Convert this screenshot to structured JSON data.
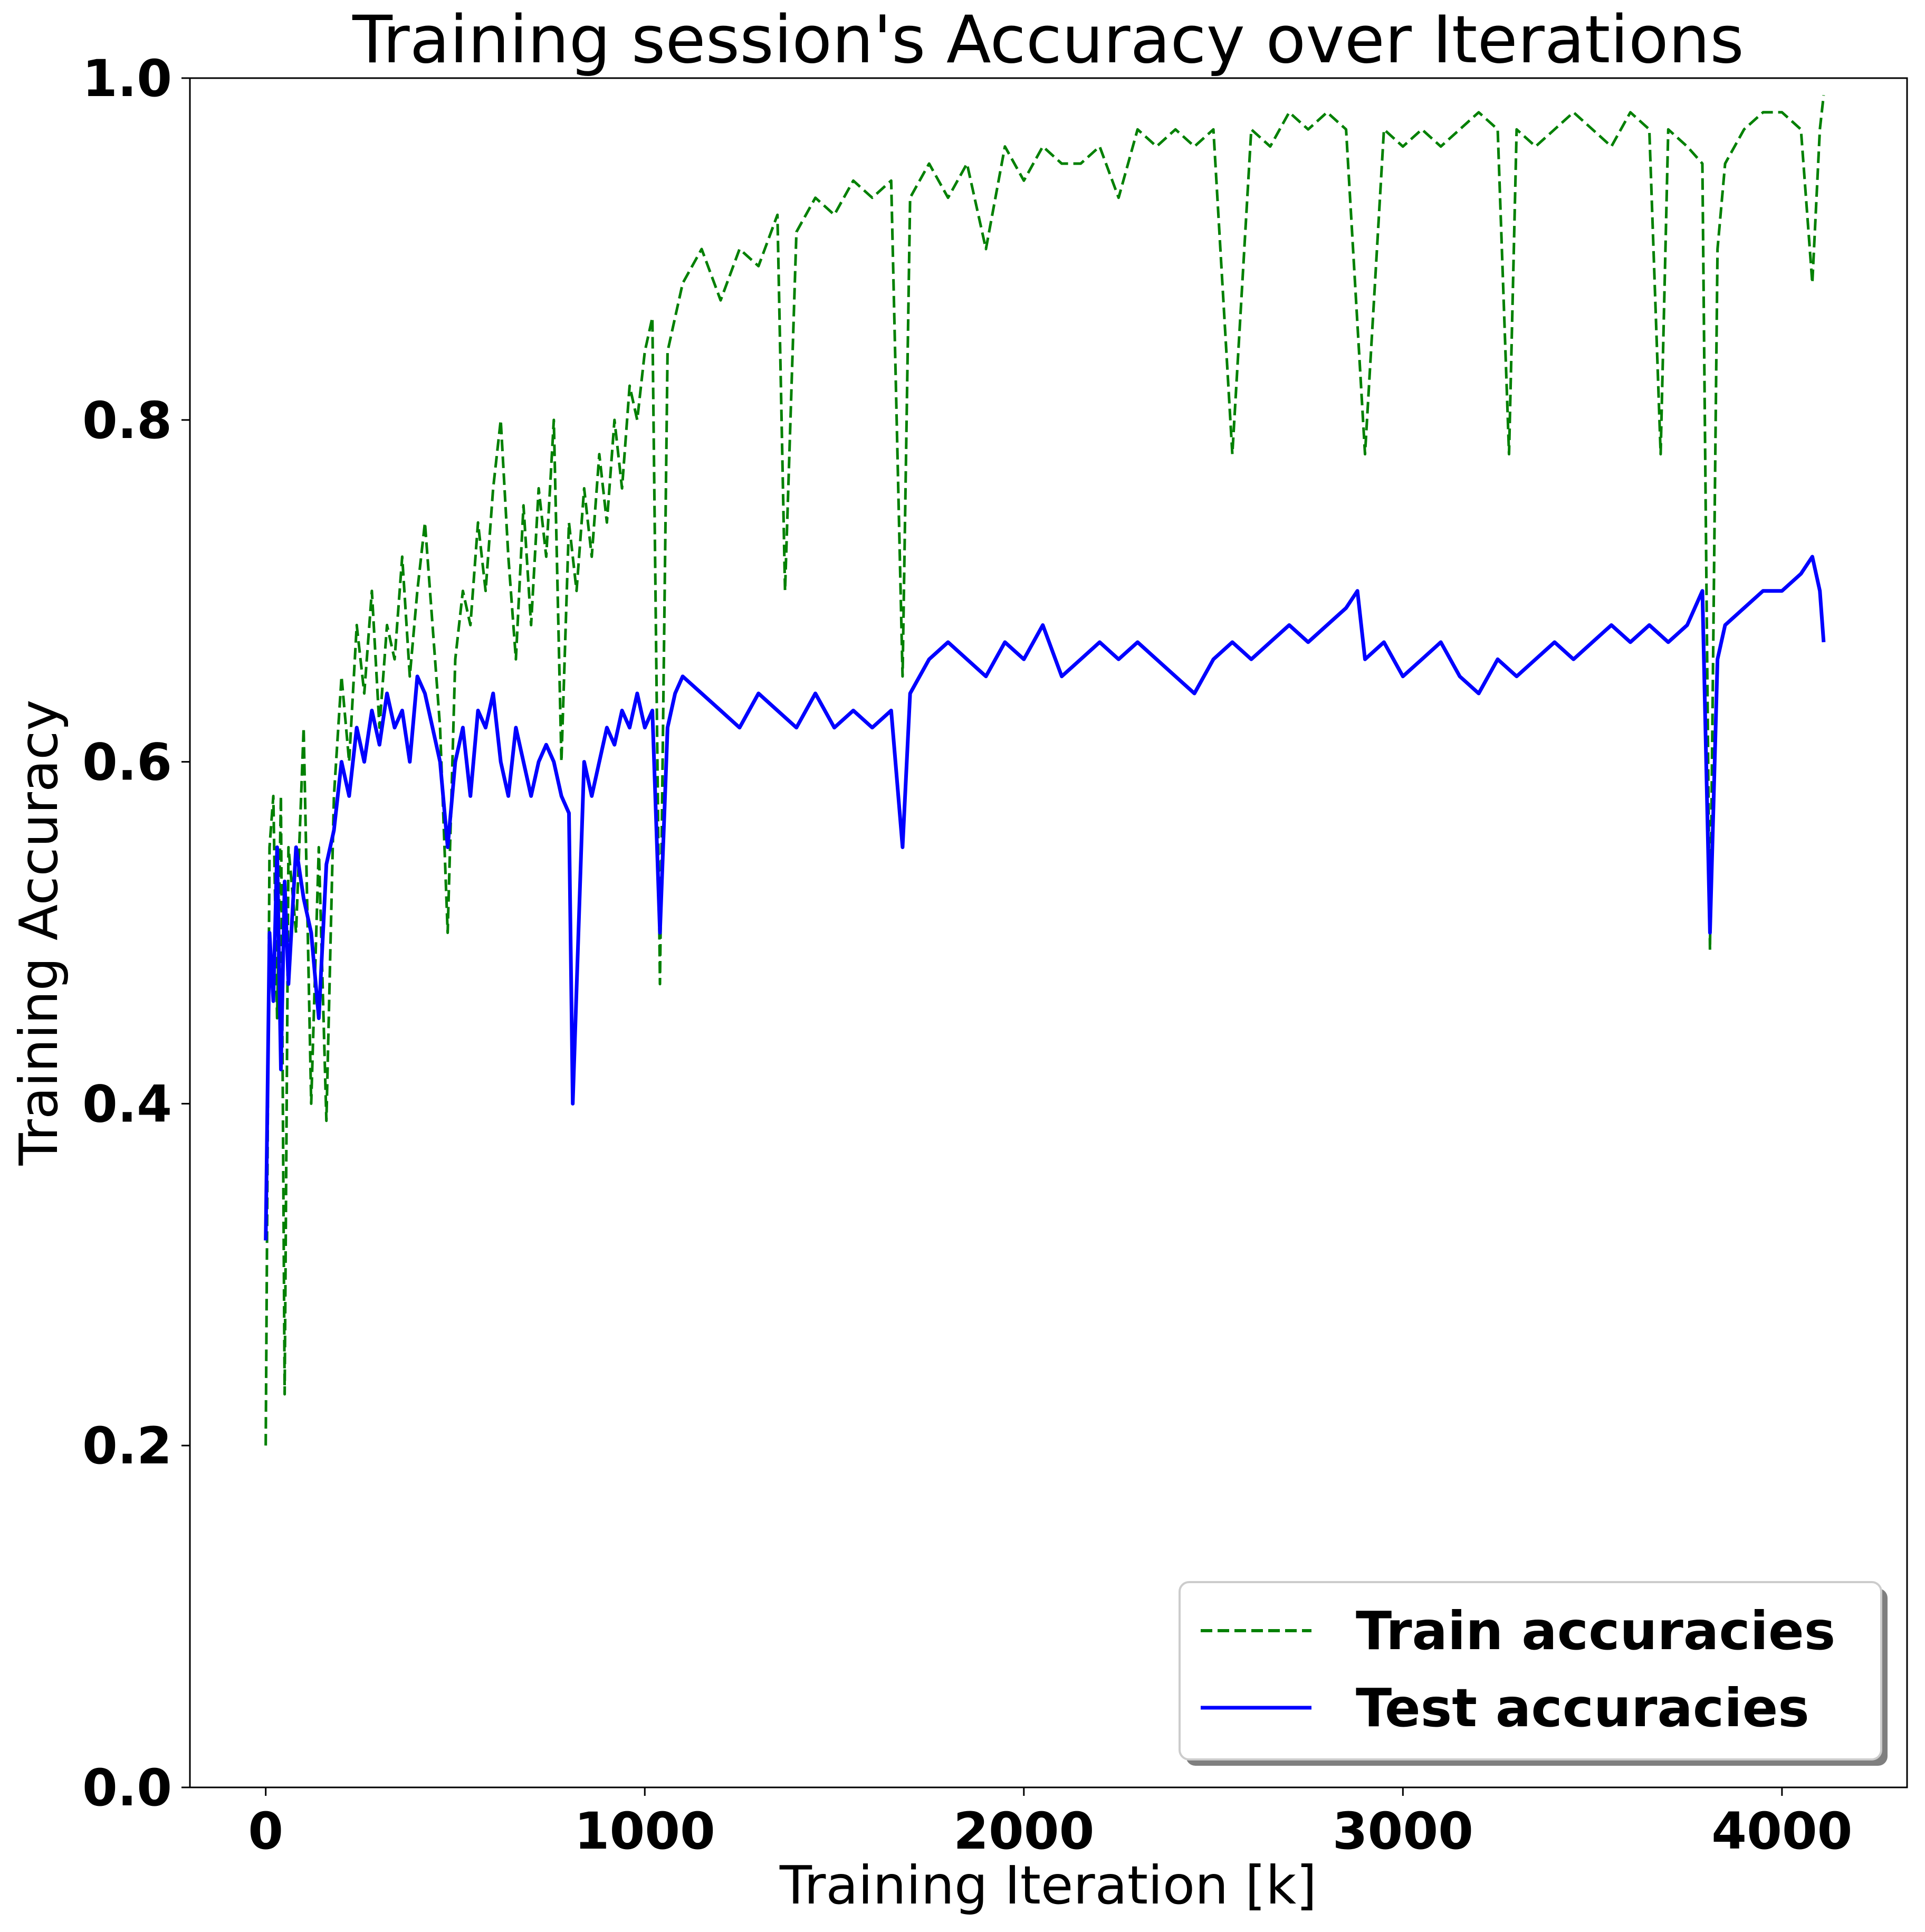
{
  "chart_data": {
    "type": "line",
    "title": "Training session's Accuracy over Iterations",
    "xlabel": "Training Iteration [k]",
    "ylabel": "Training Accuracy",
    "xlim": [
      -200,
      4330
    ],
    "ylim": [
      0.0,
      1.0
    ],
    "xticks": [
      0,
      1000,
      2000,
      3000,
      4000
    ],
    "xtick_labels": [
      "0",
      "1000",
      "2000",
      "3000",
      "4000"
    ],
    "yticks": [
      0.0,
      0.2,
      0.4,
      0.6,
      0.8,
      1.0
    ],
    "ytick_labels": [
      "0.0",
      "0.2",
      "0.4",
      "0.6",
      "0.8",
      "1.0"
    ],
    "grid": false,
    "legend_position": "bottom-right",
    "series": [
      {
        "name": "Train accuracies",
        "color": "#008000",
        "style": "dashed",
        "x": [
          0,
          10,
          20,
          30,
          40,
          50,
          60,
          80,
          100,
          120,
          140,
          160,
          180,
          200,
          220,
          240,
          260,
          280,
          300,
          320,
          340,
          360,
          380,
          400,
          420,
          440,
          460,
          480,
          500,
          520,
          540,
          560,
          580,
          600,
          620,
          640,
          660,
          680,
          700,
          720,
          740,
          760,
          780,
          800,
          820,
          840,
          860,
          880,
          900,
          920,
          940,
          960,
          980,
          1000,
          1020,
          1040,
          1060,
          1080,
          1100,
          1150,
          1200,
          1250,
          1300,
          1350,
          1370,
          1400,
          1450,
          1500,
          1550,
          1600,
          1650,
          1680,
          1700,
          1750,
          1800,
          1850,
          1900,
          1950,
          2000,
          2050,
          2100,
          2150,
          2200,
          2250,
          2300,
          2350,
          2400,
          2450,
          2500,
          2550,
          2600,
          2650,
          2700,
          2750,
          2800,
          2850,
          2900,
          2950,
          3000,
          3050,
          3100,
          3150,
          3200,
          3250,
          3280,
          3300,
          3350,
          3400,
          3450,
          3500,
          3550,
          3600,
          3650,
          3680,
          3700,
          3750,
          3790,
          3810,
          3830,
          3850,
          3900,
          3950,
          4000,
          4050,
          4080,
          4100,
          4110
        ],
        "y": [
          0.2,
          0.55,
          0.58,
          0.45,
          0.58,
          0.23,
          0.55,
          0.5,
          0.62,
          0.4,
          0.55,
          0.39,
          0.58,
          0.65,
          0.6,
          0.68,
          0.64,
          0.7,
          0.62,
          0.68,
          0.66,
          0.72,
          0.65,
          0.7,
          0.74,
          0.68,
          0.62,
          0.5,
          0.66,
          0.7,
          0.68,
          0.74,
          0.7,
          0.76,
          0.8,
          0.72,
          0.66,
          0.75,
          0.68,
          0.76,
          0.72,
          0.8,
          0.6,
          0.74,
          0.7,
          0.76,
          0.72,
          0.78,
          0.74,
          0.8,
          0.76,
          0.82,
          0.8,
          0.84,
          0.86,
          0.47,
          0.84,
          0.86,
          0.88,
          0.9,
          0.87,
          0.9,
          0.89,
          0.92,
          0.7,
          0.91,
          0.93,
          0.92,
          0.94,
          0.93,
          0.94,
          0.65,
          0.93,
          0.95,
          0.93,
          0.95,
          0.9,
          0.96,
          0.94,
          0.96,
          0.95,
          0.95,
          0.96,
          0.93,
          0.97,
          0.96,
          0.97,
          0.96,
          0.97,
          0.78,
          0.97,
          0.96,
          0.98,
          0.97,
          0.98,
          0.97,
          0.78,
          0.97,
          0.96,
          0.97,
          0.96,
          0.97,
          0.98,
          0.97,
          0.78,
          0.97,
          0.96,
          0.97,
          0.98,
          0.97,
          0.96,
          0.98,
          0.97,
          0.78,
          0.97,
          0.96,
          0.95,
          0.49,
          0.9,
          0.95,
          0.97,
          0.98,
          0.98,
          0.97,
          0.88,
          0.97,
          0.99
        ]
      },
      {
        "name": "Test accuracies",
        "color": "#0000ff",
        "style": "solid",
        "x": [
          0,
          10,
          20,
          30,
          40,
          50,
          60,
          80,
          100,
          120,
          140,
          160,
          180,
          200,
          220,
          240,
          260,
          280,
          300,
          320,
          340,
          360,
          380,
          400,
          420,
          440,
          460,
          480,
          500,
          520,
          540,
          560,
          580,
          600,
          620,
          640,
          660,
          680,
          700,
          720,
          740,
          760,
          780,
          800,
          810,
          840,
          860,
          880,
          900,
          920,
          940,
          960,
          980,
          1000,
          1020,
          1040,
          1060,
          1080,
          1100,
          1150,
          1200,
          1250,
          1300,
          1350,
          1400,
          1450,
          1500,
          1550,
          1600,
          1650,
          1680,
          1700,
          1750,
          1800,
          1850,
          1900,
          1950,
          2000,
          2050,
          2100,
          2150,
          2200,
          2250,
          2300,
          2350,
          2400,
          2450,
          2500,
          2550,
          2600,
          2650,
          2700,
          2750,
          2800,
          2850,
          2880,
          2900,
          2950,
          3000,
          3050,
          3100,
          3150,
          3200,
          3250,
          3300,
          3350,
          3400,
          3450,
          3500,
          3550,
          3600,
          3650,
          3700,
          3750,
          3790,
          3810,
          3830,
          3850,
          3900,
          3950,
          4000,
          4050,
          4080,
          4100,
          4110
        ],
        "y": [
          0.32,
          0.5,
          0.46,
          0.55,
          0.42,
          0.53,
          0.47,
          0.55,
          0.52,
          0.5,
          0.45,
          0.54,
          0.56,
          0.6,
          0.58,
          0.62,
          0.6,
          0.63,
          0.61,
          0.64,
          0.62,
          0.63,
          0.6,
          0.65,
          0.64,
          0.62,
          0.6,
          0.55,
          0.6,
          0.62,
          0.58,
          0.63,
          0.62,
          0.64,
          0.6,
          0.58,
          0.62,
          0.6,
          0.58,
          0.6,
          0.61,
          0.6,
          0.58,
          0.57,
          0.4,
          0.6,
          0.58,
          0.6,
          0.62,
          0.61,
          0.63,
          0.62,
          0.64,
          0.62,
          0.63,
          0.5,
          0.62,
          0.64,
          0.65,
          0.64,
          0.63,
          0.62,
          0.64,
          0.63,
          0.62,
          0.64,
          0.62,
          0.63,
          0.62,
          0.63,
          0.55,
          0.64,
          0.66,
          0.67,
          0.66,
          0.65,
          0.67,
          0.66,
          0.68,
          0.65,
          0.66,
          0.67,
          0.66,
          0.67,
          0.66,
          0.65,
          0.64,
          0.66,
          0.67,
          0.66,
          0.67,
          0.68,
          0.67,
          0.68,
          0.69,
          0.7,
          0.66,
          0.67,
          0.65,
          0.66,
          0.67,
          0.65,
          0.64,
          0.66,
          0.65,
          0.66,
          0.67,
          0.66,
          0.67,
          0.68,
          0.67,
          0.68,
          0.67,
          0.68,
          0.7,
          0.5,
          0.66,
          0.68,
          0.69,
          0.7,
          0.7,
          0.71,
          0.72,
          0.7,
          0.67
        ]
      }
    ]
  }
}
